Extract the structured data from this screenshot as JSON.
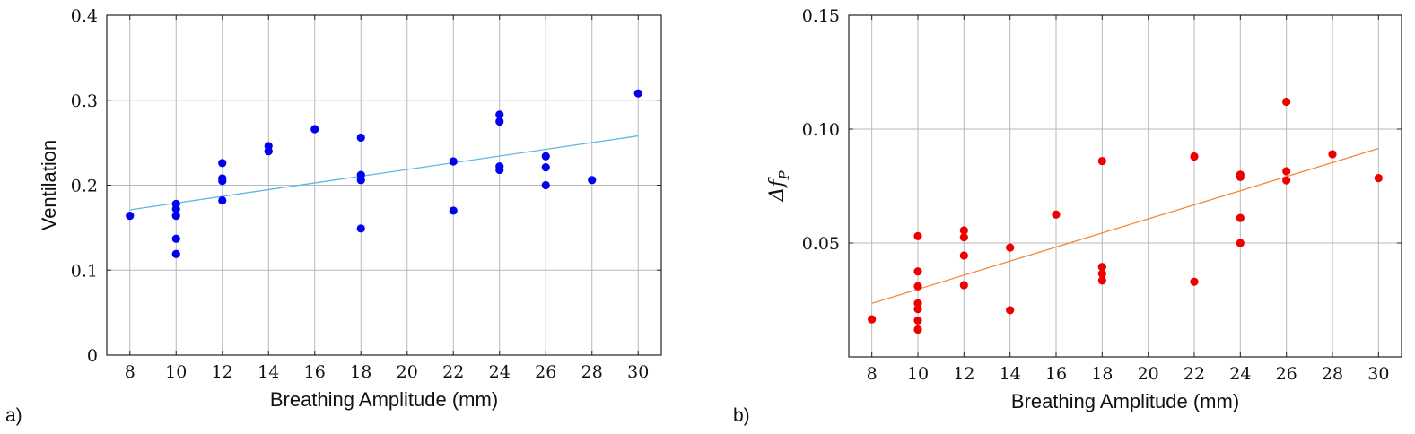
{
  "chart_data": [
    {
      "type": "scatter",
      "panel_tag": "a)",
      "xlabel": "Breathing Amplitude (mm)",
      "ylabel": "Ventilation",
      "xlim": [
        7,
        31
      ],
      "ylim": [
        0,
        0.4
      ],
      "xticks": [
        8,
        10,
        12,
        14,
        16,
        18,
        20,
        22,
        24,
        26,
        28,
        30
      ],
      "yticks": [
        0,
        0.1,
        0.2,
        0.3,
        0.4
      ],
      "ytick_labels": [
        "0",
        "0.1",
        "0.2",
        "0.3",
        "0.4"
      ],
      "grid": true,
      "marker_color": "#0000ee",
      "fit_color": "#5bb8e8",
      "points": [
        [
          8,
          0.164
        ],
        [
          10,
          0.178
        ],
        [
          10,
          0.172
        ],
        [
          10,
          0.164
        ],
        [
          10,
          0.137
        ],
        [
          10,
          0.119
        ],
        [
          12,
          0.226
        ],
        [
          12,
          0.208
        ],
        [
          12,
          0.205
        ],
        [
          12,
          0.182
        ],
        [
          14,
          0.246
        ],
        [
          14,
          0.24
        ],
        [
          16,
          0.266
        ],
        [
          18,
          0.256
        ],
        [
          18,
          0.212
        ],
        [
          18,
          0.206
        ],
        [
          18,
          0.149
        ],
        [
          22,
          0.228
        ],
        [
          22,
          0.17
        ],
        [
          24,
          0.283
        ],
        [
          24,
          0.275
        ],
        [
          24,
          0.222
        ],
        [
          24,
          0.218
        ],
        [
          26,
          0.234
        ],
        [
          26,
          0.221
        ],
        [
          26,
          0.2
        ],
        [
          28,
          0.206
        ],
        [
          30,
          0.308
        ]
      ],
      "fit_line": {
        "x": [
          8,
          30
        ],
        "y": [
          0.171,
          0.258
        ]
      }
    },
    {
      "type": "scatter",
      "panel_tag": "b)",
      "xlabel": "Breathing Amplitude (mm)",
      "ylabel": "Δf",
      "ylabel_sub": "P",
      "xlim": [
        7,
        31
      ],
      "ylim": [
        0,
        0.15
      ],
      "xticks": [
        8,
        10,
        12,
        14,
        16,
        18,
        20,
        22,
        24,
        26,
        28,
        30
      ],
      "yticks": [
        0.05,
        0.1,
        0.15
      ],
      "ytick_labels": [
        "0.05",
        "0.10",
        "0.15"
      ],
      "grid": true,
      "marker_color": "#ee0000",
      "fit_color": "#f08a3c",
      "points": [
        [
          8,
          0.0165
        ],
        [
          10,
          0.053
        ],
        [
          10,
          0.0375
        ],
        [
          10,
          0.031
        ],
        [
          10,
          0.0235
        ],
        [
          10,
          0.021
        ],
        [
          10,
          0.016
        ],
        [
          10,
          0.012
        ],
        [
          12,
          0.0555
        ],
        [
          12,
          0.0525
        ],
        [
          12,
          0.0445
        ],
        [
          12,
          0.0315
        ],
        [
          14,
          0.048
        ],
        [
          14,
          0.0205
        ],
        [
          16,
          0.0625
        ],
        [
          18,
          0.086
        ],
        [
          18,
          0.0395
        ],
        [
          18,
          0.0365
        ],
        [
          18,
          0.0335
        ],
        [
          22,
          0.088
        ],
        [
          22,
          0.033
        ],
        [
          24,
          0.08
        ],
        [
          24,
          0.079
        ],
        [
          24,
          0.061
        ],
        [
          24,
          0.05
        ],
        [
          26,
          0.112
        ],
        [
          26,
          0.0815
        ],
        [
          26,
          0.0775
        ],
        [
          28,
          0.089
        ],
        [
          30,
          0.0785
        ]
      ],
      "fit_line": {
        "x": [
          8,
          30
        ],
        "y": [
          0.0235,
          0.0915
        ]
      }
    }
  ]
}
